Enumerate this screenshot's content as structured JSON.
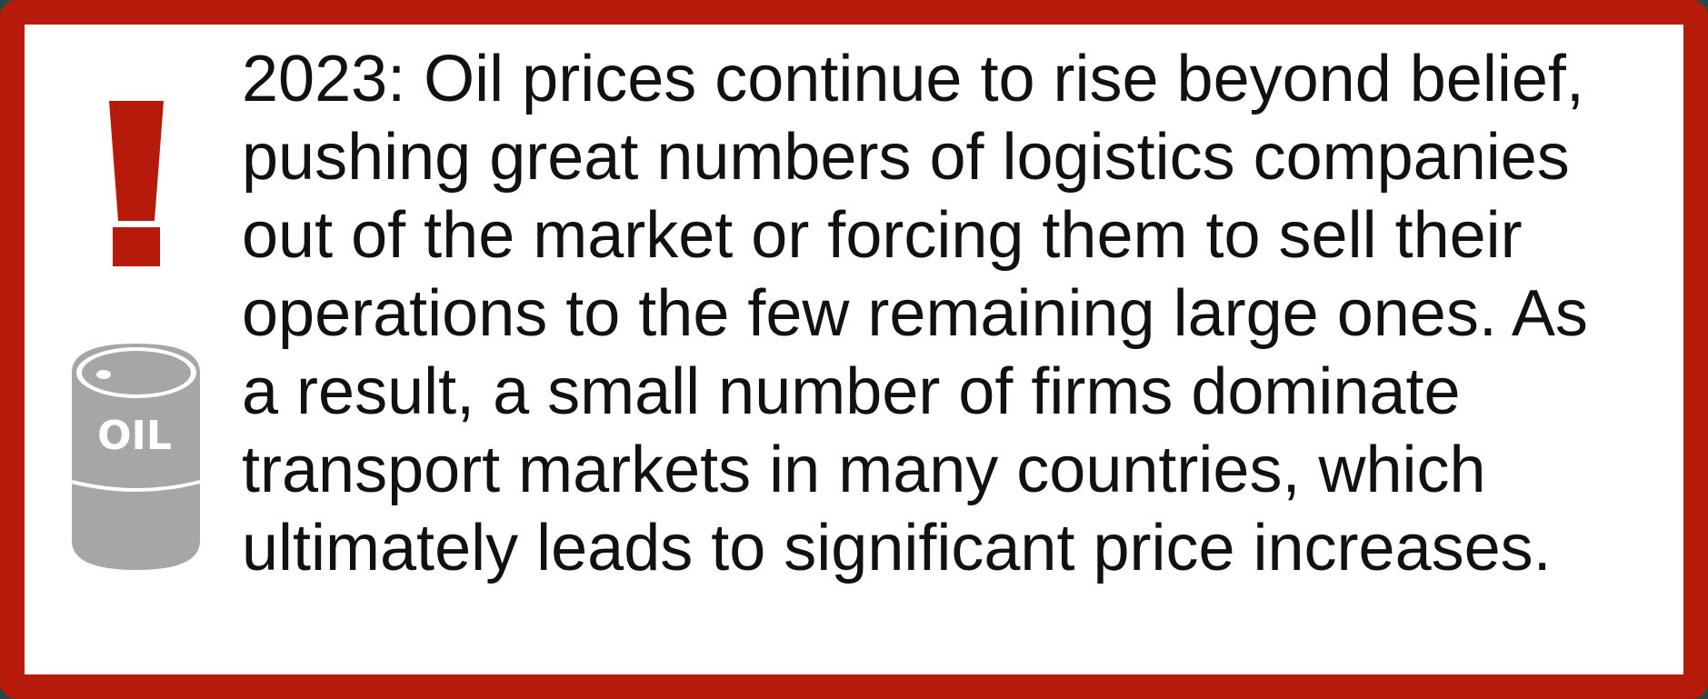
{
  "icon_label": "OIL",
  "message": {
    "lines": [
      "2023: Oil prices continue to rise beyond belief,",
      "pushing great numbers of logistics companies",
      "out of the market or forcing them to sell their",
      "operations to the few remaining large ones. As",
      "a result, a small number of firms dominate",
      "transport markets in many countries, which",
      "ultimately leads to significant price increases."
    ]
  }
}
